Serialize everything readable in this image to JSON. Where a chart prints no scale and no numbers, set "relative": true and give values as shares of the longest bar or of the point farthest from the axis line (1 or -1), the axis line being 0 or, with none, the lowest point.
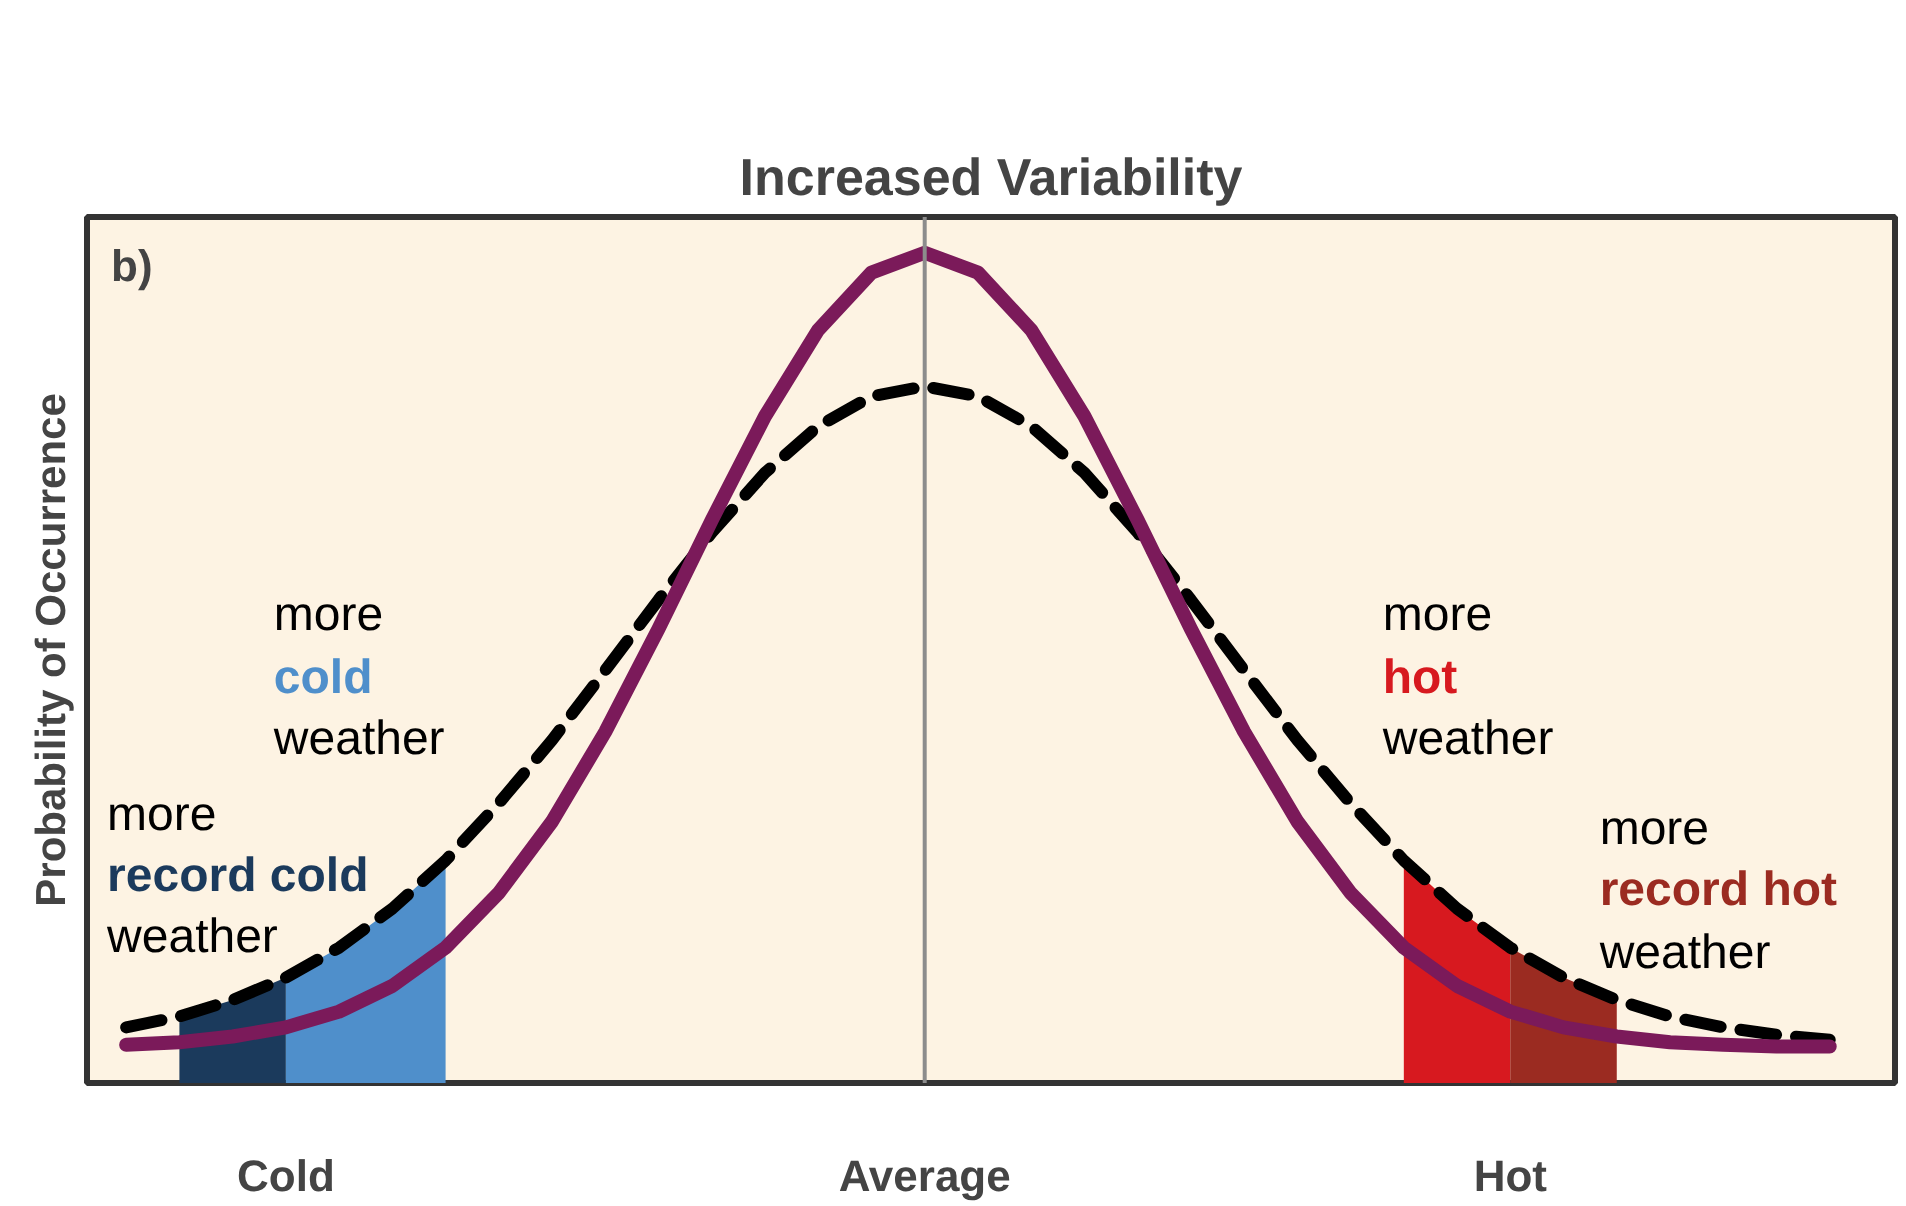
{
  "chart_data": {
    "type": "line",
    "title": "Increased Variability",
    "ylabel": "Probability of Occurrence",
    "relative": true,
    "categories": [
      null,
      null,
      null,
      "Cold",
      null,
      null,
      null,
      null,
      null,
      null,
      null,
      null,
      null,
      null,
      null,
      "Average",
      null,
      null,
      null,
      null,
      null,
      null,
      null,
      null,
      null,
      null,
      "Hot",
      null,
      null,
      null,
      null,
      null,
      null
    ],
    "ref_lines": [
      {
        "axis": "x",
        "value": "Average",
        "color": "#8c8c8c"
      }
    ],
    "series": [
      {
        "type": "area",
        "name": "record cold",
        "color": "#1b3a5c",
        "values": [
          null,
          0.08,
          0.1,
          0.127,
          null,
          null,
          null,
          null,
          null,
          null,
          null,
          null,
          null,
          null,
          null,
          null,
          null,
          null,
          null,
          null,
          null,
          null,
          null,
          null,
          null,
          null,
          null,
          null,
          null,
          null,
          null,
          null,
          null
        ]
      },
      {
        "type": "area",
        "name": "cold",
        "color": "#4f8fcb",
        "values": [
          null,
          null,
          null,
          0.127,
          0.163,
          0.21,
          0.268,
          null,
          null,
          null,
          null,
          null,
          null,
          null,
          null,
          null,
          null,
          null,
          null,
          null,
          null,
          null,
          null,
          null,
          null,
          null,
          null,
          null,
          null,
          null,
          null,
          null,
          null
        ]
      },
      {
        "type": "area",
        "name": "hot",
        "color": "#d7191f",
        "values": [
          null,
          null,
          null,
          null,
          null,
          null,
          null,
          null,
          null,
          null,
          null,
          null,
          null,
          null,
          null,
          null,
          null,
          null,
          null,
          null,
          null,
          null,
          null,
          null,
          0.268,
          0.21,
          0.163,
          null,
          null,
          null,
          null,
          null,
          null
        ]
      },
      {
        "type": "area",
        "name": "record hot",
        "color": "#9b2b21",
        "values": [
          null,
          null,
          null,
          null,
          null,
          null,
          null,
          null,
          null,
          null,
          null,
          null,
          null,
          null,
          null,
          null,
          null,
          null,
          null,
          null,
          null,
          null,
          null,
          null,
          null,
          null,
          0.163,
          0.127,
          0.1,
          null,
          null,
          null,
          null
        ]
      },
      {
        "color": "#000000",
        "line_style": "dashed",
        "values": [
          0.067,
          0.08,
          0.1,
          0.127,
          0.163,
          0.21,
          0.268,
          0.337,
          0.413,
          0.497,
          0.582,
          0.663,
          0.735,
          0.791,
          0.827,
          0.839,
          0.827,
          0.791,
          0.735,
          0.663,
          0.582,
          0.497,
          0.413,
          0.337,
          0.268,
          0.21,
          0.163,
          0.127,
          0.1,
          0.08,
          0.067,
          0.058,
          0.052
        ]
      },
      {
        "color": "#7b1a5a",
        "line_style": "solid",
        "values": [
          0.046,
          0.049,
          0.056,
          0.067,
          0.086,
          0.117,
          0.163,
          0.229,
          0.315,
          0.423,
          0.547,
          0.678,
          0.803,
          0.907,
          0.976,
          1.0,
          0.976,
          0.907,
          0.803,
          0.678,
          0.547,
          0.423,
          0.315,
          0.229,
          0.163,
          0.117,
          0.086,
          0.067,
          0.056,
          0.049,
          0.046,
          0.044,
          0.044
        ]
      }
    ],
    "annotations": [
      "b)",
      "more",
      "weather",
      "more",
      "weather",
      "more",
      "weather",
      "more",
      "weather"
    ]
  }
}
